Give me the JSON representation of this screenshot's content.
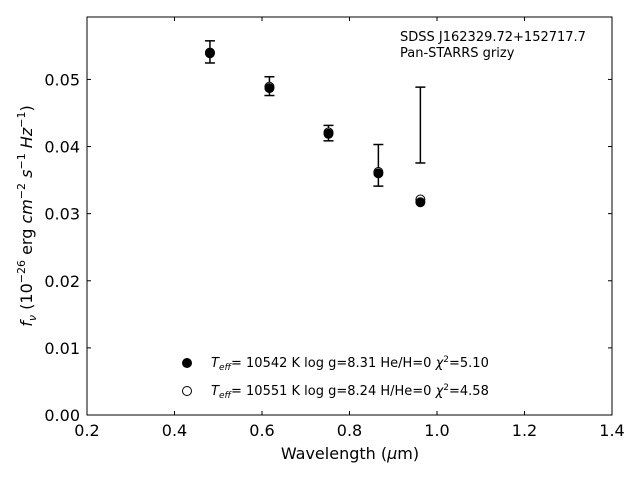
{
  "chart_data": {
    "type": "scatter",
    "xlabel": "Wavelength (μm)",
    "ylabel": "f_ν (10^-26 erg cm^-2 s^-1 Hz^-1)",
    "xlim": [
      0.2,
      1.4
    ],
    "ylim": [
      0.0,
      0.0593
    ],
    "x_ticks": [
      "0.2",
      "0.4",
      "0.6",
      "0.8",
      "1.0",
      "1.2",
      "1.4"
    ],
    "y_ticks": [
      "0.00",
      "0.01",
      "0.02",
      "0.03",
      "0.04",
      "0.05"
    ],
    "annotation": [
      "SDSS J162329.72+152717.7",
      "Pan-STARRS grizy"
    ],
    "observed": {
      "x": [
        0.481,
        0.617,
        0.752,
        0.866,
        0.962
      ],
      "y": [
        0.0541,
        0.049,
        0.042,
        0.0372,
        0.0432
      ],
      "yerr": [
        0.00165,
        0.0014,
        0.00115,
        0.0031,
        0.00565
      ]
    },
    "series": [
      {
        "name": "T_eff= 10542 K  log g=8.31  He/H=0  χ²=5.10",
        "marker": "filled",
        "x": [
          0.481,
          0.617,
          0.752,
          0.866,
          0.962
        ],
        "y": [
          0.0539,
          0.0487,
          0.0419,
          0.036,
          0.0317
        ]
      },
      {
        "name": "T_eff= 10551 K  log g=8.24  H/He=0  χ²=4.58",
        "marker": "open",
        "x": [
          0.481,
          0.617,
          0.752,
          0.866,
          0.962
        ],
        "y": [
          0.054,
          0.0489,
          0.0421,
          0.0362,
          0.0321
        ]
      }
    ],
    "legend_position": "bottom-center"
  }
}
